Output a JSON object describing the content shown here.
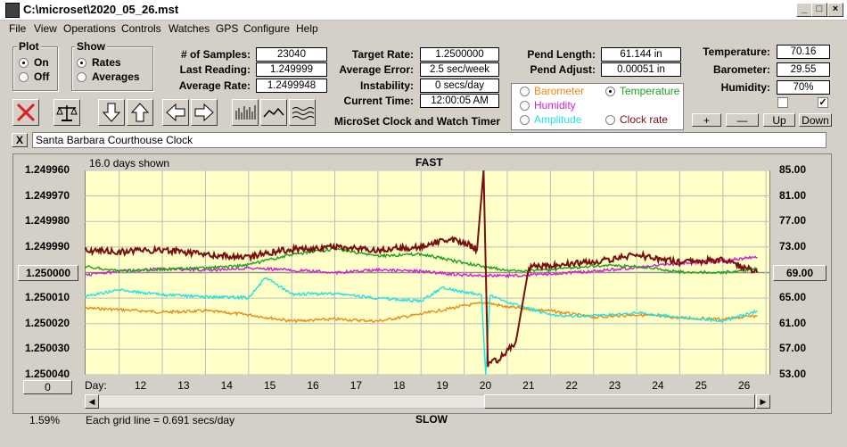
{
  "window": {
    "title": "C:\\microset\\2020_05_26.mst"
  },
  "menu": [
    "File",
    "View",
    "Operations",
    "Controls",
    "Watches",
    "GPS",
    "Configure",
    "Help"
  ],
  "plot_group": {
    "label": "Plot",
    "options": [
      "On",
      "Off"
    ],
    "selected": "On"
  },
  "show_group": {
    "label": "Show",
    "options": [
      "Rates",
      "Averages"
    ],
    "selected": "Rates"
  },
  "stats": {
    "samples_label": "# of Samples:",
    "samples": "23040",
    "last_label": "Last Reading:",
    "last": "1.249999",
    "avg_label": "Average Rate:",
    "avg": "1.2499948"
  },
  "rates": {
    "target_label": "Target Rate:",
    "target": "1.2500000",
    "error_label": "Average Error:",
    "error": "2.5 sec/week",
    "instab_label": "Instability:",
    "instab": "0 secs/day",
    "time_label": "Current Time:",
    "time": "12:00:05 AM"
  },
  "app_name": "MicroSet Clock and Watch Timer",
  "pend": {
    "length_label": "Pend Length:",
    "length": "61.144 in",
    "adjust_label": "Pend Adjust:",
    "adjust": "0.00051 in"
  },
  "sensors": {
    "barometer": "Barometer",
    "temperature": "Temperature",
    "humidity": "Humidity",
    "amplitude": "Amplitude",
    "clockrate": "Clock rate",
    "selected": "Temperature"
  },
  "env": {
    "temp_label": "Temperature:",
    "temp": "70.16",
    "baro_label": "Barometer:",
    "baro": "29.55",
    "hum_label": "Humidity:",
    "hum": "70%"
  },
  "adj_buttons": [
    "+",
    "—",
    "Up",
    "Down"
  ],
  "watch_name": "Santa Barbara Courthouse Clock",
  "close_x": "X",
  "colors": {
    "clock": "#7a0f0f",
    "temperature": "#1fa01f",
    "humidity": "#d21ed2",
    "amplitude": "#21e1e6",
    "barometer": "#ee8a17",
    "plot_bg": "#ffffc8"
  },
  "plot": {
    "days_shown": "16.0 days shown",
    "fast": "FAST",
    "slow": "SLOW",
    "grid_note": "Each grid line = 0.691 secs/day",
    "left_center_btn": "1.250000",
    "right_center_btn": "69.00",
    "bottom_left_btn": "0",
    "percent": "1.59%",
    "day_label": "Day:"
  },
  "chart_data": {
    "type": "line",
    "title": "",
    "x_label": "Day",
    "x_ticks": [
      "12",
      "13",
      "14",
      "15",
      "16",
      "17",
      "18",
      "19",
      "20",
      "21",
      "22",
      "23",
      "24",
      "25",
      "26"
    ],
    "y_left_ticks": [
      "1.249960",
      "1.249970",
      "1.249980",
      "1.249990",
      "1.250000",
      "1.250010",
      "1.250020",
      "1.250030",
      "1.250040"
    ],
    "y_right_ticks": [
      "85.00",
      "81.00",
      "77.00",
      "73.00",
      "69.00",
      "65.00",
      "61.00",
      "57.00",
      "53.00"
    ],
    "y_left_range": [
      1.24996,
      1.25004
    ],
    "y_right_range": [
      53,
      85
    ],
    "series": [
      {
        "name": "Clock rate",
        "color": "#7a0f0f",
        "x": [
          11.0,
          12.0,
          13.0,
          14.0,
          15.0,
          15.5,
          16.0,
          17.0,
          18.0,
          19.0,
          19.5,
          20.0,
          20.3,
          20.45,
          20.55,
          20.8,
          21.2,
          21.5,
          22.0,
          23.0,
          24.0,
          25.0,
          26.0,
          26.8
        ],
        "y": [
          1.249991,
          1.249992,
          1.249991,
          1.249993,
          1.249994,
          1.249992,
          1.249991,
          1.24999,
          1.249991,
          1.24999,
          1.249987,
          1.249988,
          1.249991,
          1.24996,
          1.250036,
          1.250034,
          1.250027,
          1.249998,
          1.249997,
          1.249996,
          1.249993,
          1.249996,
          1.249995,
          1.25
        ]
      },
      {
        "name": "Temperature",
        "color": "#1fa01f",
        "x": [
          11.0,
          12.0,
          13.0,
          14.0,
          15.0,
          16.0,
          17.0,
          18.0,
          19.0,
          20.0,
          21.0,
          22.0,
          23.0,
          24.0,
          25.0,
          26.0,
          26.8
        ],
        "y": [
          70.1,
          69.3,
          69.5,
          69.7,
          70.2,
          71.8,
          72.7,
          71.6,
          71.9,
          70.5,
          69.3,
          69.4,
          70.1,
          70.0,
          69.1,
          69.0,
          69.6
        ]
      },
      {
        "name": "Humidity",
        "color": "#d21ed2",
        "x": [
          11.0,
          12.0,
          13.0,
          14.0,
          15.0,
          16.0,
          17.0,
          18.0,
          19.0,
          20.0,
          21.0,
          22.0,
          23.0,
          24.0,
          25.0,
          26.0,
          26.8
        ],
        "y": [
          68.5,
          69.2,
          69.6,
          69.4,
          69.7,
          69.4,
          69.0,
          69.4,
          69.2,
          68.6,
          68.5,
          68.8,
          69.2,
          69.8,
          70.4,
          70.9,
          71.4
        ]
      },
      {
        "name": "Amplitude",
        "color": "#21e1e6",
        "x": [
          11.0,
          12.0,
          13.0,
          14.0,
          15.0,
          15.4,
          16.0,
          17.0,
          18.0,
          19.0,
          19.5,
          20.0,
          20.4,
          20.5,
          20.6,
          21.0,
          22.0,
          23.0,
          24.0,
          25.0,
          26.0,
          26.8
        ],
        "y": [
          65.0,
          66.3,
          65.5,
          65.2,
          65.1,
          68.2,
          65.6,
          65.7,
          65.0,
          64.5,
          66.7,
          65.9,
          65.5,
          53.0,
          65.4,
          64.4,
          62.3,
          62.2,
          62.7,
          62.0,
          61.4,
          63.0
        ]
      },
      {
        "name": "Barometer",
        "color": "#ee8a17",
        "x": [
          11.0,
          12.0,
          13.0,
          14.0,
          15.0,
          16.0,
          17.0,
          18.0,
          19.0,
          20.0,
          20.5,
          21.0,
          22.0,
          23.0,
          24.0,
          25.0,
          26.0,
          26.8
        ],
        "y": [
          63.5,
          63.2,
          62.8,
          63.0,
          62.4,
          61.4,
          61.7,
          61.4,
          62.5,
          63.8,
          64.3,
          63.6,
          63.0,
          62.0,
          62.4,
          61.9,
          61.7,
          62.2
        ]
      }
    ]
  }
}
